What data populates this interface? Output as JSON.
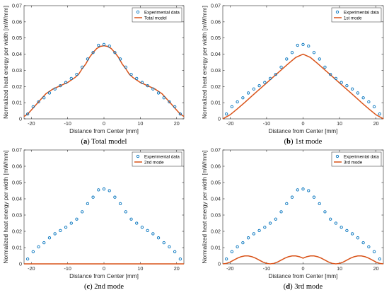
{
  "colors": {
    "experimental": "#0072BD",
    "model": "#D95319"
  },
  "chart_data": [
    {
      "type": "scatter",
      "caption": {
        "letter": "a",
        "text": " Total model"
      },
      "xlabel": "Distance from Center [mm]",
      "ylabel": "Normalized heat energy per width [mW/mm]",
      "xlim": [
        -22,
        22
      ],
      "ylim": [
        0,
        0.07
      ],
      "xticks": [
        -20,
        -10,
        0,
        10,
        20
      ],
      "yticks": [
        0,
        0.01,
        0.02,
        0.03,
        0.04,
        0.05,
        0.06,
        0.07
      ],
      "ytick_labels": [
        "0",
        "0.01",
        "0.02",
        "0.03",
        "0.04",
        "0.05",
        "0.06",
        "0.07"
      ],
      "grid": false,
      "legend_position": "top-right",
      "series": [
        {
          "name": "Experimental data",
          "kind": "markers",
          "x": [
            -21,
            -19.5,
            -18,
            -16.5,
            -15,
            -13.5,
            -12,
            -10.5,
            -9,
            -7.5,
            -6,
            -4.5,
            -3,
            -1.5,
            0,
            1.5,
            3,
            4.5,
            6,
            7.5,
            9,
            10.5,
            12,
            13.5,
            15,
            16.5,
            18,
            19.5,
            21
          ],
          "y": [
            0.003,
            0.0075,
            0.0105,
            0.013,
            0.016,
            0.0185,
            0.0205,
            0.0225,
            0.025,
            0.0275,
            0.032,
            0.037,
            0.041,
            0.0455,
            0.046,
            0.045,
            0.041,
            0.037,
            0.032,
            0.0275,
            0.025,
            0.0225,
            0.0205,
            0.0185,
            0.016,
            0.013,
            0.0105,
            0.0075,
            0.003
          ]
        },
        {
          "name": "Total model",
          "kind": "line",
          "x": [
            -22,
            -21,
            -20,
            -19,
            -18,
            -17,
            -16,
            -15,
            -14,
            -13,
            -12,
            -11,
            -10,
            -9,
            -8,
            -7,
            -6,
            -5,
            -4,
            -3,
            -2,
            -1,
            0,
            1,
            2,
            3,
            4,
            5,
            6,
            7,
            8,
            9,
            10,
            11,
            12,
            13,
            14,
            15,
            16,
            17,
            18,
            19,
            20,
            21,
            22
          ],
          "y": [
            0.0015,
            0.003,
            0.0054,
            0.008,
            0.0105,
            0.013,
            0.0155,
            0.017,
            0.0185,
            0.0195,
            0.0205,
            0.0215,
            0.0225,
            0.024,
            0.0255,
            0.0275,
            0.031,
            0.034,
            0.038,
            0.041,
            0.0435,
            0.0448,
            0.0452,
            0.0448,
            0.0435,
            0.041,
            0.038,
            0.034,
            0.031,
            0.0275,
            0.0255,
            0.024,
            0.0225,
            0.0215,
            0.0205,
            0.0195,
            0.0185,
            0.017,
            0.0155,
            0.013,
            0.0105,
            0.008,
            0.0054,
            0.003,
            0.0015
          ]
        }
      ]
    },
    {
      "type": "scatter",
      "caption": {
        "letter": "b",
        "text": " 1st mode"
      },
      "xlabel": "Distance from Center [mm]",
      "ylabel": "Normalized heat energy per width [mW/mm]",
      "xlim": [
        -22,
        22
      ],
      "ylim": [
        0,
        0.07
      ],
      "xticks": [
        -20,
        -10,
        0,
        10,
        20
      ],
      "yticks": [
        0,
        0.01,
        0.02,
        0.03,
        0.04,
        0.05,
        0.06,
        0.07
      ],
      "ytick_labels": [
        "0",
        "0.01",
        "0.02",
        "0.03",
        "0.04",
        "0.05",
        "0.06",
        "0.07"
      ],
      "grid": false,
      "legend_position": "top-right",
      "series": [
        {
          "name": "Experimental data",
          "kind": "markers",
          "x": [
            -21,
            -19.5,
            -18,
            -16.5,
            -15,
            -13.5,
            -12,
            -10.5,
            -9,
            -7.5,
            -6,
            -4.5,
            -3,
            -1.5,
            0,
            1.5,
            3,
            4.5,
            6,
            7.5,
            9,
            10.5,
            12,
            13.5,
            15,
            16.5,
            18,
            19.5,
            21
          ],
          "y": [
            0.003,
            0.0075,
            0.0105,
            0.013,
            0.016,
            0.0185,
            0.0205,
            0.0225,
            0.025,
            0.0275,
            0.032,
            0.037,
            0.041,
            0.0455,
            0.046,
            0.045,
            0.041,
            0.037,
            0.032,
            0.0275,
            0.025,
            0.0225,
            0.0205,
            0.0185,
            0.016,
            0.013,
            0.0105,
            0.0075,
            0.003
          ]
        },
        {
          "name": "1st mode",
          "kind": "line",
          "x": [
            -22,
            -20,
            -18,
            -16,
            -14,
            -12,
            -10,
            -8,
            -6,
            -4,
            -2,
            0,
            2,
            4,
            6,
            8,
            10,
            12,
            14,
            16,
            18,
            20,
            22
          ],
          "y": [
            0,
            0.0025,
            0.0062,
            0.0101,
            0.0142,
            0.0182,
            0.0222,
            0.0262,
            0.0302,
            0.0342,
            0.038,
            0.04,
            0.038,
            0.0342,
            0.0302,
            0.0262,
            0.0222,
            0.0182,
            0.0142,
            0.0101,
            0.0062,
            0.0025,
            0
          ]
        }
      ]
    },
    {
      "type": "scatter",
      "caption": {
        "letter": "c",
        "text": " 2nd mode"
      },
      "xlabel": "Distance from Center [mm]",
      "ylabel": "Normalized heat energy per width [mW/mm]",
      "xlim": [
        -22,
        22
      ],
      "ylim": [
        0,
        0.07
      ],
      "xticks": [
        -20,
        -10,
        0,
        10,
        20
      ],
      "yticks": [
        0,
        0.01,
        0.02,
        0.03,
        0.04,
        0.05,
        0.06,
        0.07
      ],
      "ytick_labels": [
        "0",
        "0.01",
        "0.02",
        "0.03",
        "0.04",
        "0.05",
        "0.06",
        "0.07"
      ],
      "grid": false,
      "legend_position": "top-right",
      "series": [
        {
          "name": "Experimental data",
          "kind": "markers",
          "x": [
            -21,
            -19.5,
            -18,
            -16.5,
            -15,
            -13.5,
            -12,
            -10.5,
            -9,
            -7.5,
            -6,
            -4.5,
            -3,
            -1.5,
            0,
            1.5,
            3,
            4.5,
            6,
            7.5,
            9,
            10.5,
            12,
            13.5,
            15,
            16.5,
            18,
            19.5,
            21
          ],
          "y": [
            0.003,
            0.0075,
            0.0105,
            0.013,
            0.016,
            0.0185,
            0.0205,
            0.0225,
            0.025,
            0.0275,
            0.032,
            0.037,
            0.041,
            0.0455,
            0.046,
            0.045,
            0.041,
            0.037,
            0.032,
            0.0275,
            0.025,
            0.0225,
            0.0205,
            0.0185,
            0.016,
            0.013,
            0.0105,
            0.0075,
            0.003
          ]
        },
        {
          "name": "2nd mode",
          "kind": "line",
          "x": [
            -22,
            22
          ],
          "y": [
            0,
            0
          ]
        }
      ]
    },
    {
      "type": "scatter",
      "caption": {
        "letter": "d",
        "text": " 3rd mode"
      },
      "xlabel": "Distance from Center [mm]",
      "ylabel": "Normalized heat energy per width [mW/mm]",
      "xlim": [
        -22,
        22
      ],
      "ylim": [
        0,
        0.07
      ],
      "xticks": [
        -20,
        -10,
        0,
        10,
        20
      ],
      "yticks": [
        0,
        0.01,
        0.02,
        0.03,
        0.04,
        0.05,
        0.06,
        0.07
      ],
      "ytick_labels": [
        "0",
        "0.01",
        "0.02",
        "0.03",
        "0.04",
        "0.05",
        "0.06",
        "0.07"
      ],
      "grid": false,
      "legend_position": "top-right",
      "series": [
        {
          "name": "Experimental data",
          "kind": "markers",
          "x": [
            -21,
            -19.5,
            -18,
            -16.5,
            -15,
            -13.5,
            -12,
            -10.5,
            -9,
            -7.5,
            -6,
            -4.5,
            -3,
            -1.5,
            0,
            1.5,
            3,
            4.5,
            6,
            7.5,
            9,
            10.5,
            12,
            13.5,
            15,
            16.5,
            18,
            19.5,
            21
          ],
          "y": [
            0.003,
            0.0075,
            0.0105,
            0.013,
            0.016,
            0.0185,
            0.0205,
            0.0225,
            0.025,
            0.0275,
            0.032,
            0.037,
            0.041,
            0.0455,
            0.046,
            0.045,
            0.041,
            0.037,
            0.032,
            0.0275,
            0.025,
            0.0225,
            0.0205,
            0.0185,
            0.016,
            0.013,
            0.0105,
            0.0075,
            0.003
          ]
        },
        {
          "name": "3rd mode",
          "kind": "line",
          "x": [
            -22,
            -21,
            -20,
            -19,
            -18,
            -17,
            -16,
            -15,
            -14,
            -13,
            -12,
            -11,
            -10,
            -9,
            -8,
            -7,
            -6,
            -5,
            -4,
            -3,
            -2,
            -1,
            0,
            1,
            2,
            3,
            4,
            5,
            6,
            7,
            8,
            9,
            10,
            11,
            12,
            13,
            14,
            15,
            16,
            17,
            18,
            19,
            20,
            21,
            22
          ],
          "y": [
            0,
            0.0003,
            0.0011,
            0.0023,
            0.0035,
            0.0044,
            0.0049,
            0.0049,
            0.0044,
            0.0035,
            0.0023,
            0.0011,
            0.0003,
            0,
            0.0003,
            0.0011,
            0.0023,
            0.0035,
            0.0044,
            0.0049,
            0.0049,
            0.0044,
            0.0035,
            0.0044,
            0.0049,
            0.0049,
            0.0044,
            0.0035,
            0.0023,
            0.0011,
            0.0003,
            0,
            0.0003,
            0.0011,
            0.0023,
            0.0035,
            0.0044,
            0.0049,
            0.0049,
            0.0044,
            0.0035,
            0.0023,
            0.0011,
            0.0003,
            0
          ]
        }
      ]
    }
  ]
}
